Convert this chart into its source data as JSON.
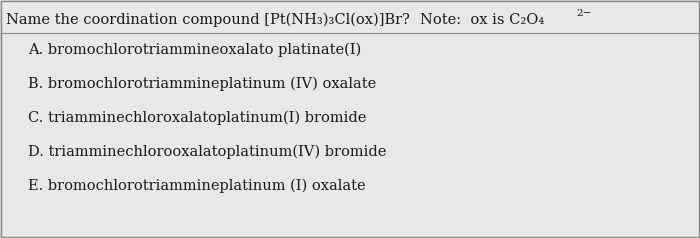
{
  "bg_color": "#d8d8d8",
  "inner_bg_color": "#e8e8e8",
  "border_color": "#888888",
  "title_text": "Name the coordination compound [Pt(NH₃)₃Cl(ox)]Br?",
  "note_text": "Note:  ox is C₂O₄",
  "note_superscript": "2−",
  "options": [
    "A. bromochlorotriammineoxalato platinate(I)",
    "B. bromochlorotriammineplatinum (IV) oxalate",
    "C. triamminechloroxalatoplatinum(I) bromide",
    "D. triamminechlorooxalatoplatinum(IV) bromide",
    "E. bromochlorotriammineplatinum (I) oxalate"
  ],
  "title_fontsize": 10.5,
  "option_fontsize": 10.5,
  "text_color": "#1a1a1a",
  "font_family": "DejaVu Serif"
}
